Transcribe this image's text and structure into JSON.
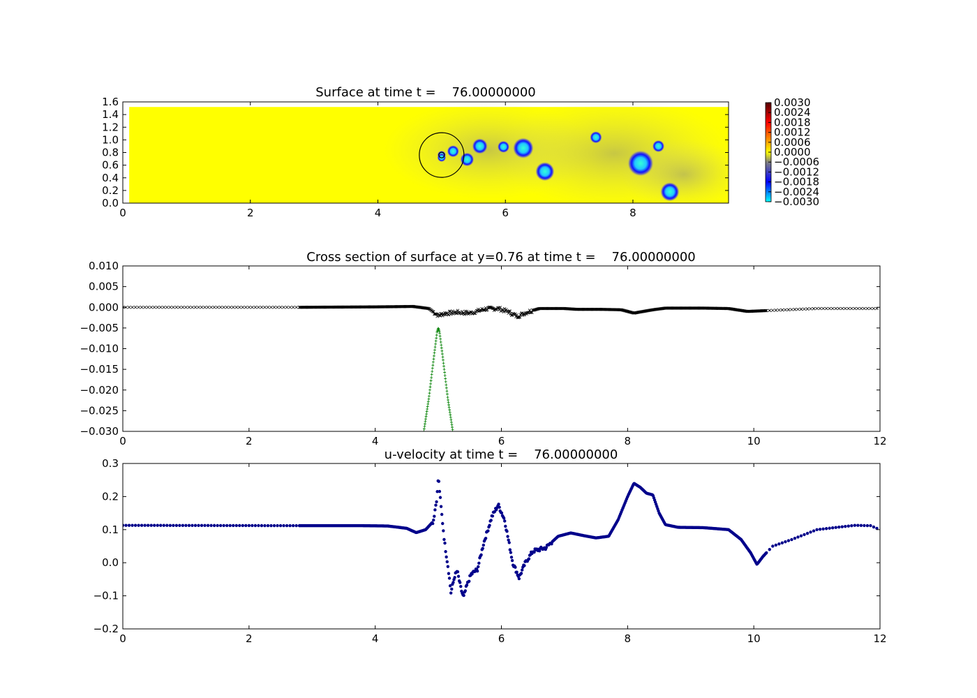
{
  "chart_data": [
    {
      "type": "heatmap",
      "title": "Surface at time t =    76.00000000",
      "xlim": [
        0,
        9.5
      ],
      "ylim": [
        0,
        1.6
      ],
      "xticks": [
        "0",
        "2",
        "4",
        "6",
        "8"
      ],
      "yticks": [
        "0.0",
        "0.2",
        "0.4",
        "0.6",
        "0.8",
        "1.0",
        "1.2",
        "1.4",
        "1.6"
      ],
      "domain": {
        "x": [
          0.1,
          9.5
        ],
        "y": [
          0.0,
          1.52
        ]
      },
      "background_value": 0.0,
      "colorbar": {
        "min": -0.003,
        "max": 0.003,
        "ticks": [
          "0.0030",
          "0.0024",
          "0.0018",
          "0.0012",
          "0.0006",
          "0.0000",
          "−0.0006",
          "−0.0012",
          "−0.0018",
          "−0.0024",
          "−0.0030"
        ],
        "colors": [
          "#00ffff",
          "#0000ff",
          "#808080",
          "#ffff00",
          "#ff0000",
          "#550000"
        ]
      },
      "depressions": [
        {
          "x": 5.0,
          "y": 0.76,
          "r": 0.05,
          "value": -0.002
        },
        {
          "x": 5.0,
          "y": 0.72,
          "r": 0.05,
          "value": -0.0018
        },
        {
          "x": 5.18,
          "y": 0.82,
          "r": 0.07,
          "value": -0.0022
        },
        {
          "x": 5.4,
          "y": 0.69,
          "r": 0.08,
          "value": -0.0024
        },
        {
          "x": 5.6,
          "y": 0.9,
          "r": 0.09,
          "value": -0.0026
        },
        {
          "x": 5.97,
          "y": 0.89,
          "r": 0.07,
          "value": -0.0022
        },
        {
          "x": 6.28,
          "y": 0.87,
          "r": 0.12,
          "value": -0.0028
        },
        {
          "x": 6.62,
          "y": 0.5,
          "r": 0.11,
          "value": -0.0028
        },
        {
          "x": 7.42,
          "y": 1.04,
          "r": 0.07,
          "value": -0.0022
        },
        {
          "x": 8.12,
          "y": 0.63,
          "r": 0.15,
          "value": -0.003
        },
        {
          "x": 8.4,
          "y": 0.9,
          "r": 0.07,
          "value": -0.0022
        },
        {
          "x": 8.58,
          "y": 0.18,
          "r": 0.11,
          "value": -0.0028
        }
      ],
      "ring": {
        "x": 5.0,
        "y": 0.76,
        "r": 0.35
      }
    },
    {
      "type": "scatter",
      "title": "Cross section of surface at y=0.76 at time t =    76.00000000",
      "xlim": [
        0,
        12
      ],
      "ylim": [
        -0.03,
        0.01
      ],
      "xticks": [
        "0",
        "2",
        "4",
        "6",
        "8",
        "10",
        "12"
      ],
      "yticks": [
        "0.010",
        "0.005",
        "0.000",
        "−0.005",
        "−0.010",
        "−0.015",
        "−0.020",
        "−0.025",
        "−0.030"
      ],
      "series": [
        {
          "marker": "x",
          "color": "#000000",
          "profile": [
            [
              0,
              0.0
            ],
            [
              2.8,
              0.0
            ],
            [
              4.0,
              0.0001
            ],
            [
              4.6,
              0.0002
            ],
            [
              4.85,
              -0.0003
            ],
            [
              5.0,
              -0.002
            ],
            [
              5.1,
              -0.0015
            ],
            [
              5.3,
              -0.0012
            ],
            [
              5.5,
              -0.0014
            ],
            [
              5.75,
              -0.0004
            ],
            [
              5.95,
              -0.0003
            ],
            [
              6.1,
              -0.001
            ],
            [
              6.25,
              -0.0022
            ],
            [
              6.4,
              -0.0012
            ],
            [
              6.6,
              -0.0003
            ],
            [
              7.0,
              -0.0003
            ],
            [
              7.2,
              -0.0005
            ],
            [
              7.6,
              -0.0005
            ],
            [
              7.9,
              -0.0006
            ],
            [
              8.1,
              -0.0014
            ],
            [
              8.4,
              -0.0006
            ],
            [
              8.6,
              -0.0002
            ],
            [
              9.2,
              -0.0002
            ],
            [
              9.6,
              -0.0003
            ],
            [
              9.9,
              -0.001
            ],
            [
              10.2,
              -0.0008
            ],
            [
              11.0,
              -0.0003
            ],
            [
              12.0,
              -0.0003
            ]
          ]
        },
        {
          "marker": "+",
          "color": "#008000",
          "profile": [
            [
              4.77,
              -0.03
            ],
            [
              4.85,
              -0.022
            ],
            [
              4.93,
              -0.012
            ],
            [
              4.98,
              -0.006
            ],
            [
              5.0,
              -0.005
            ],
            [
              5.02,
              -0.006
            ],
            [
              5.07,
              -0.012
            ],
            [
              5.15,
              -0.022
            ],
            [
              5.23,
              -0.03
            ]
          ]
        }
      ]
    },
    {
      "type": "scatter",
      "title": "u-velocity at time t =    76.00000000",
      "xlim": [
        0,
        12
      ],
      "ylim": [
        -0.2,
        0.3
      ],
      "xticks": [
        "0",
        "2",
        "4",
        "6",
        "8",
        "10",
        "12"
      ],
      "yticks": [
        "0.3",
        "0.2",
        "0.1",
        "0.0",
        "−0.1",
        "−0.2"
      ],
      "series": [
        {
          "marker": "o",
          "color": "#00008b",
          "profile": [
            [
              0,
              0.113
            ],
            [
              2.8,
              0.112
            ],
            [
              3.8,
              0.112
            ],
            [
              4.2,
              0.111
            ],
            [
              4.5,
              0.104
            ],
            [
              4.65,
              0.091
            ],
            [
              4.8,
              0.1
            ],
            [
              4.92,
              0.125
            ],
            [
              4.98,
              0.2
            ],
            [
              5.0,
              0.26
            ],
            [
              5.04,
              0.175
            ],
            [
              5.1,
              0.06
            ],
            [
              5.16,
              -0.02
            ],
            [
              5.2,
              -0.09
            ],
            [
              5.26,
              -0.04
            ],
            [
              5.3,
              -0.025
            ],
            [
              5.36,
              -0.08
            ],
            [
              5.4,
              -0.105
            ],
            [
              5.45,
              -0.07
            ],
            [
              5.52,
              -0.035
            ],
            [
              5.62,
              -0.02
            ],
            [
              5.72,
              0.06
            ],
            [
              5.85,
              0.14
            ],
            [
              5.95,
              0.175
            ],
            [
              6.05,
              0.13
            ],
            [
              6.18,
              0.0
            ],
            [
              6.28,
              -0.045
            ],
            [
              6.38,
              0.0
            ],
            [
              6.5,
              0.035
            ],
            [
              6.7,
              0.045
            ],
            [
              6.9,
              0.08
            ],
            [
              7.1,
              0.09
            ],
            [
              7.3,
              0.082
            ],
            [
              7.5,
              0.075
            ],
            [
              7.7,
              0.08
            ],
            [
              7.85,
              0.13
            ],
            [
              8.0,
              0.2
            ],
            [
              8.1,
              0.24
            ],
            [
              8.2,
              0.228
            ],
            [
              8.3,
              0.21
            ],
            [
              8.4,
              0.205
            ],
            [
              8.5,
              0.15
            ],
            [
              8.6,
              0.115
            ],
            [
              8.8,
              0.107
            ],
            [
              9.2,
              0.106
            ],
            [
              9.6,
              0.1
            ],
            [
              9.8,
              0.07
            ],
            [
              9.95,
              0.03
            ],
            [
              10.05,
              -0.005
            ],
            [
              10.15,
              0.02
            ],
            [
              10.3,
              0.05
            ],
            [
              10.6,
              0.07
            ],
            [
              11.0,
              0.1
            ],
            [
              11.6,
              0.113
            ],
            [
              11.85,
              0.112
            ],
            [
              12.0,
              0.1
            ]
          ]
        }
      ]
    }
  ]
}
